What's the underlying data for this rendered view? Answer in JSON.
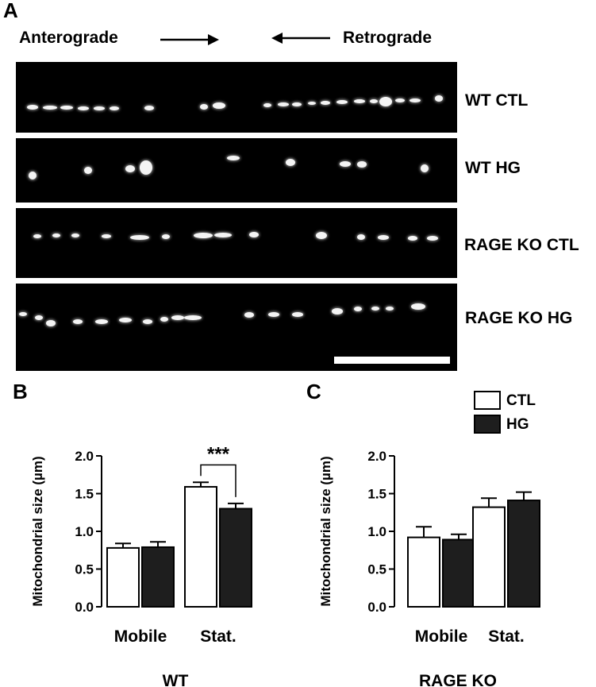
{
  "panel_a": {
    "letter": "A",
    "anterograde": "Anterograde",
    "retrograde": "Retrograde",
    "strips": [
      {
        "label": "WT CTL"
      },
      {
        "label": "WT HG"
      },
      {
        "label": "RAGE KO CTL"
      },
      {
        "label": "RAGE KO HG"
      }
    ]
  },
  "legend": {
    "ctl_label": "CTL",
    "hg_label": "HG",
    "ctl_color": "#ffffff",
    "hg_color": "#1e1e1e"
  },
  "chart_data": [
    {
      "type": "bar",
      "panel": "B",
      "title": "WT",
      "ylabel": "Mitochondrial size (µm)",
      "categories": [
        "Mobile",
        "Stat."
      ],
      "series": [
        {
          "name": "CTL",
          "values": [
            0.78,
            1.59
          ],
          "errors": [
            0.06,
            0.06
          ]
        },
        {
          "name": "HG",
          "values": [
            0.79,
            1.3
          ],
          "errors": [
            0.07,
            0.07
          ]
        }
      ],
      "ylim": [
        0.0,
        2.0
      ],
      "yticks": [
        "0.0",
        "0.5",
        "1.0",
        "1.5",
        "2.0"
      ],
      "annotation": {
        "text": "***",
        "category": "Stat."
      }
    },
    {
      "type": "bar",
      "panel": "C",
      "title": "RAGE KO",
      "ylabel": "Mitochondrial size (µm)",
      "categories": [
        "Mobile",
        "Stat."
      ],
      "series": [
        {
          "name": "CTL",
          "values": [
            0.92,
            1.32
          ],
          "errors": [
            0.14,
            0.12
          ]
        },
        {
          "name": "HG",
          "values": [
            0.89,
            1.41
          ],
          "errors": [
            0.07,
            0.11
          ]
        }
      ],
      "ylim": [
        0.0,
        2.0
      ],
      "yticks": [
        "0.0",
        "0.5",
        "1.0",
        "1.5",
        "2.0"
      ]
    }
  ]
}
